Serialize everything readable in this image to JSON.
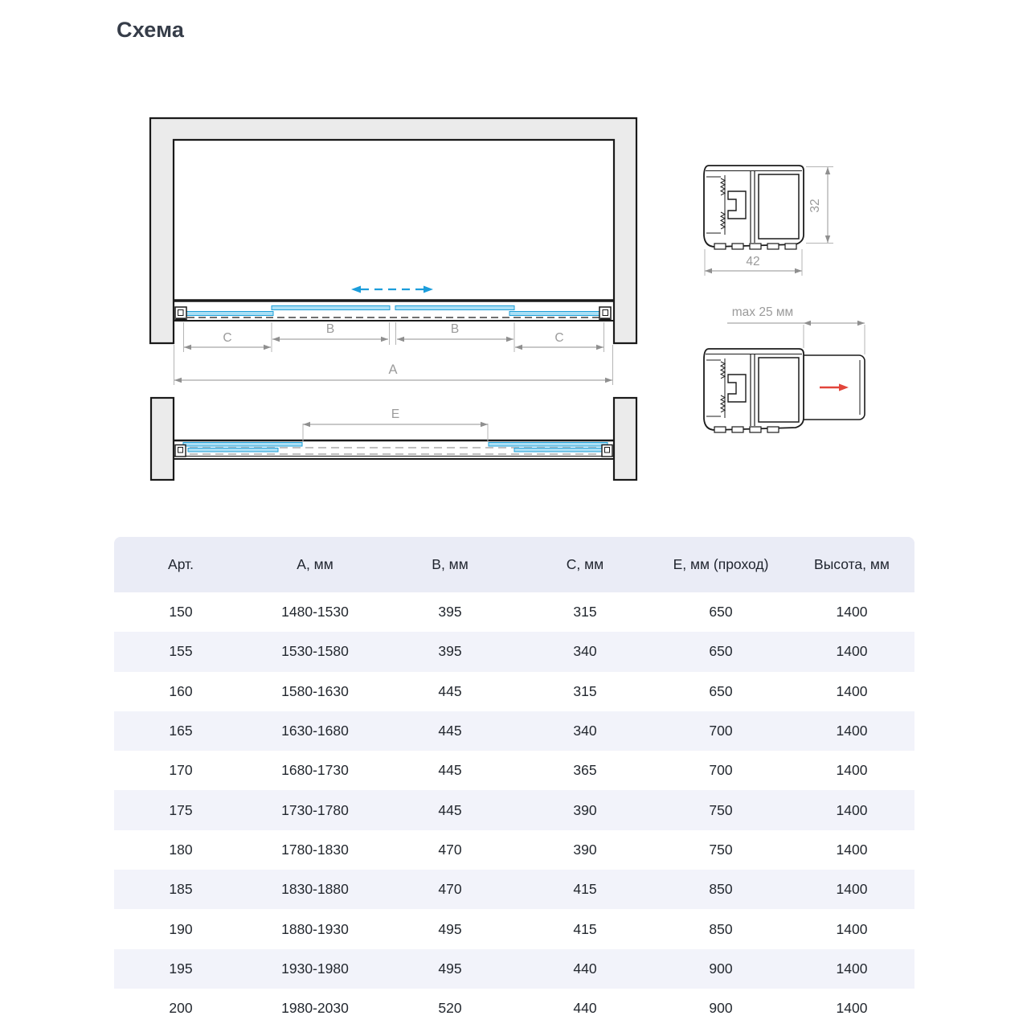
{
  "page": {
    "title": "Схема"
  },
  "diagram": {
    "dim_a": "A",
    "dim_b": "B",
    "dim_c": "C",
    "dim_e": "E",
    "profile_width": "42",
    "profile_height": "32",
    "profile_max_offset": "max 25 мм"
  },
  "colors": {
    "accent_blue": "#1b9ddb",
    "panel_blue_fill": "#abdff5",
    "panel_blue_border": "#1d9fd8",
    "arrow_red": "#e2453b",
    "wall_gray": "#ebebeb",
    "outline_black": "#1a1a1a",
    "dimension_gray": "#9b9b9b",
    "table_header_bg": "#eaecf6",
    "table_stripe_bg": "#f2f3fa"
  },
  "table": {
    "headers": [
      "Арт.",
      "А, мм",
      "В, мм",
      "С, мм",
      "Е, мм (проход)",
      "Высота, мм"
    ],
    "rows": [
      [
        "150",
        "1480-1530",
        "395",
        "315",
        "650",
        "1400"
      ],
      [
        "155",
        "1530-1580",
        "395",
        "340",
        "650",
        "1400"
      ],
      [
        "160",
        "1580-1630",
        "445",
        "315",
        "650",
        "1400"
      ],
      [
        "165",
        "1630-1680",
        "445",
        "340",
        "700",
        "1400"
      ],
      [
        "170",
        "1680-1730",
        "445",
        "365",
        "700",
        "1400"
      ],
      [
        "175",
        "1730-1780",
        "445",
        "390",
        "750",
        "1400"
      ],
      [
        "180",
        "1780-1830",
        "470",
        "390",
        "750",
        "1400"
      ],
      [
        "185",
        "1830-1880",
        "470",
        "415",
        "850",
        "1400"
      ],
      [
        "190",
        "1880-1930",
        "495",
        "415",
        "850",
        "1400"
      ],
      [
        "195",
        "1930-1980",
        "495",
        "440",
        "900",
        "1400"
      ],
      [
        "200",
        "1980-2030",
        "520",
        "440",
        "900",
        "1400"
      ]
    ]
  }
}
